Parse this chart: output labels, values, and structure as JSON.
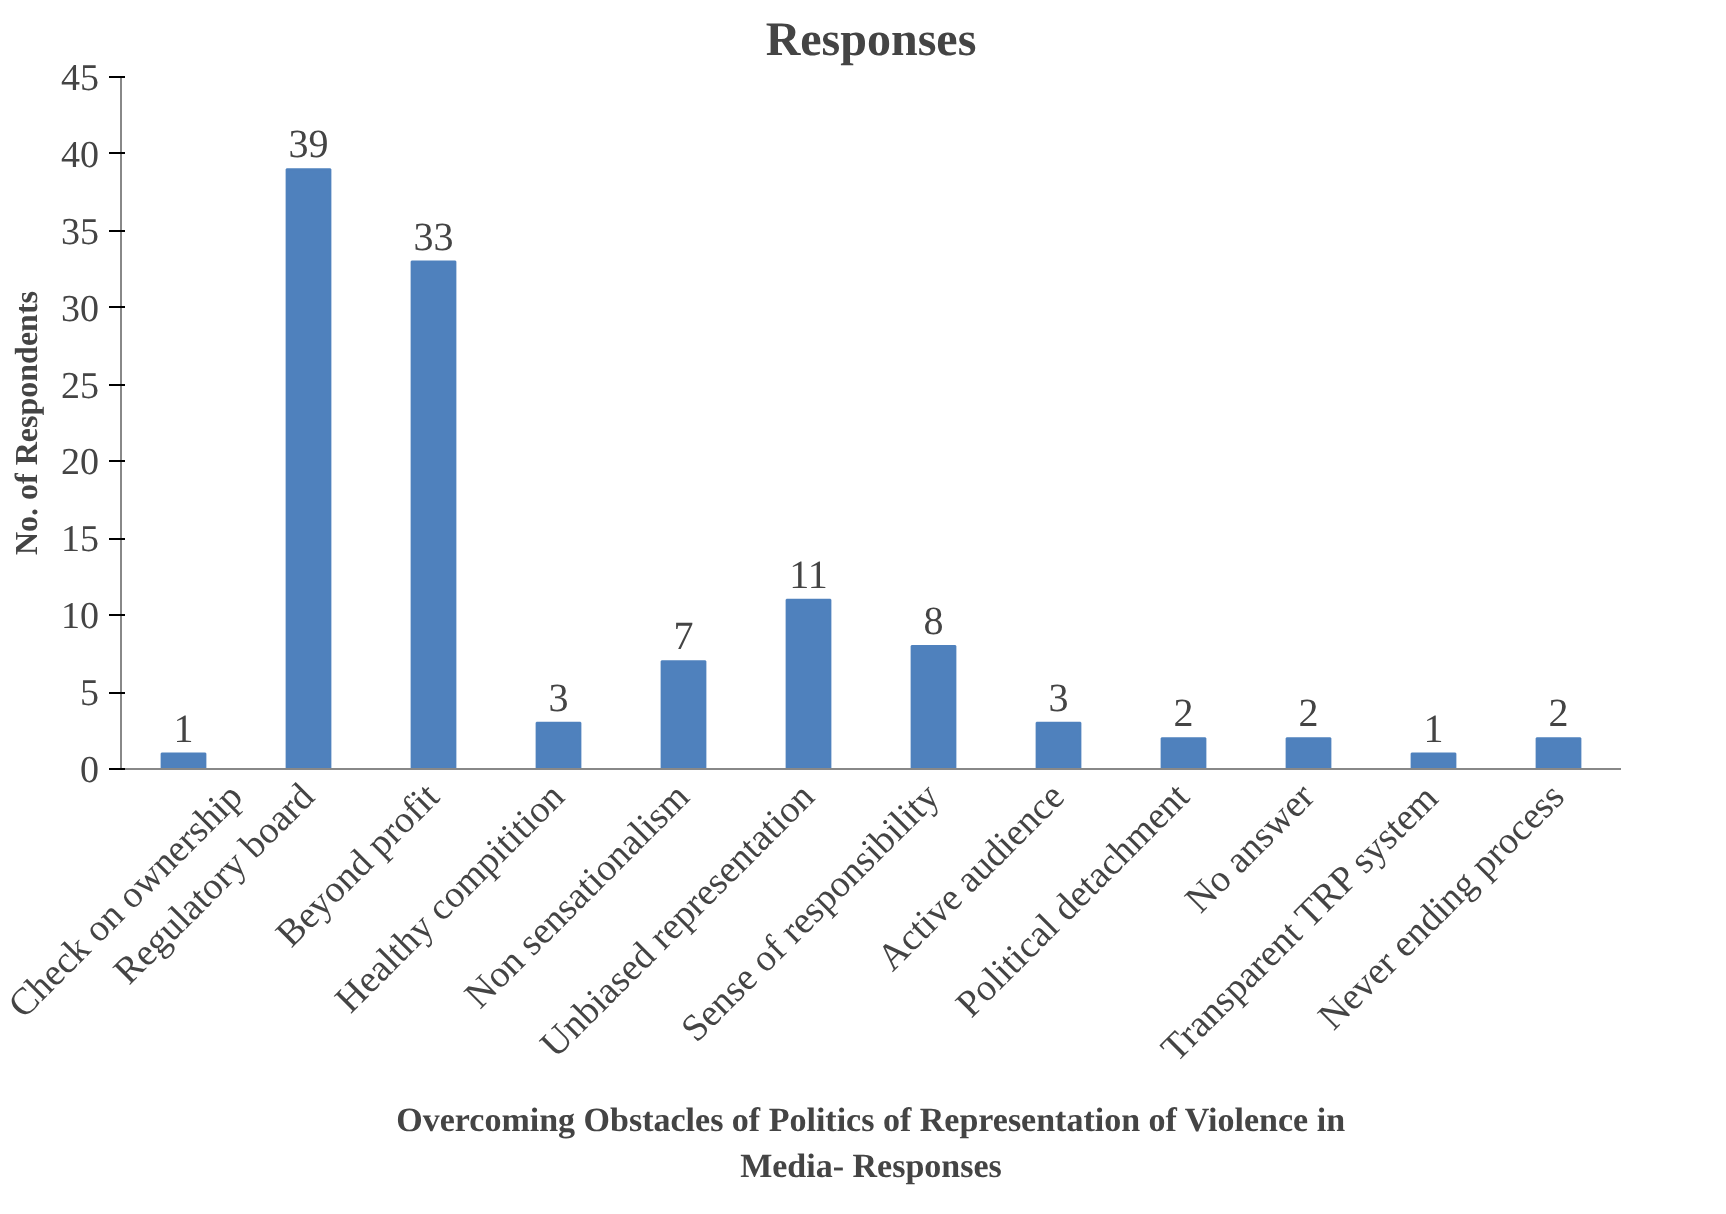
{
  "chart_data": {
    "type": "bar",
    "title": "Responses",
    "xlabel": "Overcoming Obstacles of Politics of Representation of Violence in Media- Responses",
    "ylabel": "No. of Respondents",
    "categories": [
      "Check on ownership",
      "Regulatory board",
      "Beyond profit",
      "Healthy compitition",
      "Non sensationalism",
      "Unbiased representation",
      "Sense of responsibility",
      "Active audience",
      "Political detachment",
      "No answer",
      "Transparent TRP system",
      "Never ending process"
    ],
    "values": [
      1,
      39,
      33,
      3,
      7,
      11,
      8,
      3,
      2,
      2,
      1,
      2
    ],
    "color": "#4f81bd",
    "ylim": [
      0,
      45
    ],
    "yticks": [
      0,
      5,
      10,
      15,
      20,
      25,
      30,
      35,
      40,
      45
    ],
    "grid": false,
    "data_labels": true
  }
}
